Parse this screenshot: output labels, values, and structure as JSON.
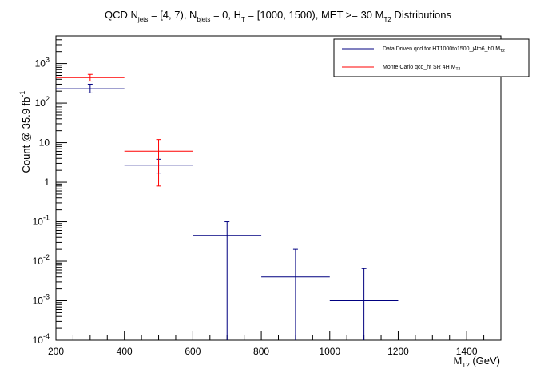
{
  "chart_data": {
    "type": "scatter",
    "title": {
      "p1": "QCD N",
      "s1": "jets",
      "p2": " = [4, 7), N",
      "s2": "bjets",
      "p3": " = 0, H",
      "s3": "T",
      "p4": " = [1000, 1500), MET >= 30 M",
      "s4": "T2",
      "p5": " Distributions"
    },
    "xlabel": {
      "main": "M",
      "sub": "T2",
      "rest": " (GeV)"
    },
    "ylabel": {
      "main": "Count @ 35.9 fb",
      "sup": "-1"
    },
    "x_scale": "linear",
    "y_scale": "log",
    "xlim": [
      200,
      1500
    ],
    "ylim": [
      0.0001,
      5000
    ],
    "x_ticks": [
      "200",
      "400",
      "600",
      "800",
      "1000",
      "1200",
      "1400"
    ],
    "y_ticks": [
      {
        "value": 0.0001,
        "base": "10",
        "exp": "-4"
      },
      {
        "value": 0.001,
        "base": "10",
        "exp": "-3"
      },
      {
        "value": 0.01,
        "base": "10",
        "exp": "-2"
      },
      {
        "value": 0.1,
        "base": "10",
        "exp": "-1"
      },
      {
        "value": 1,
        "base": "1",
        "exp": ""
      },
      {
        "value": 10,
        "base": "10",
        "exp": ""
      },
      {
        "value": 100,
        "base": "10",
        "exp": "2"
      },
      {
        "value": 1000,
        "base": "10",
        "exp": "3"
      }
    ],
    "grid": false,
    "legend_position": "top-right",
    "series": [
      {
        "name": "Data Driven qcd for HT1000to1500_j4to6_b0 M",
        "name_sub": "T2",
        "color": "#000080",
        "points": [
          {
            "x": 300,
            "xlo": 200,
            "xhi": 400,
            "y": 230,
            "ylo": 180,
            "yhi": 300
          },
          {
            "x": 500,
            "xlo": 400,
            "xhi": 600,
            "y": 2.7,
            "ylo": 1.7,
            "yhi": 3.8
          },
          {
            "x": 700,
            "xlo": 600,
            "xhi": 800,
            "y": 0.045,
            "ylo": 0.0001,
            "yhi": 0.1
          },
          {
            "x": 900,
            "xlo": 800,
            "xhi": 1000,
            "y": 0.004,
            "ylo": 0.0001,
            "yhi": 0.02
          },
          {
            "x": 1100,
            "xlo": 1000,
            "xhi": 1200,
            "y": 0.001,
            "ylo": 0.0001,
            "yhi": 0.0065
          }
        ]
      },
      {
        "name": "Monte Carlo qcd_ht SR 4H M",
        "name_sub": "T2",
        "color": "#ff0000",
        "points": [
          {
            "x": 300,
            "xlo": 200,
            "xhi": 400,
            "y": 440,
            "ylo": 360,
            "yhi": 530
          },
          {
            "x": 500,
            "xlo": 400,
            "xhi": 600,
            "y": 6.1,
            "ylo": 0.8,
            "yhi": 12
          }
        ]
      }
    ]
  }
}
